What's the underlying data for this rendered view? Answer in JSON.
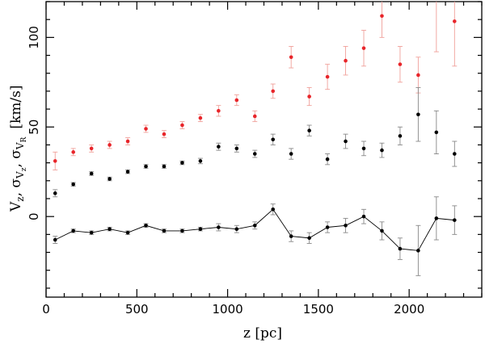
{
  "chart_data": {
    "type": "scatter",
    "xlabel": "z [pc]",
    "ylabel": {
      "line1": "V",
      "sub1": "z",
      "sep1": ",  ",
      "sigma": "σ",
      "sub2": "V",
      "subsub2": "z",
      "sep2": ",  ",
      "sigma2": "σ",
      "sub3": "V",
      "subsub3": "R",
      "unit": "[km/s]"
    },
    "xlim": [
      0,
      2400
    ],
    "ylim": [
      -45,
      120
    ],
    "xticks": [
      0,
      500,
      1000,
      1500,
      2000
    ],
    "yticks": [
      0,
      50,
      100
    ],
    "series": [
      {
        "color": "#e8252a",
        "errcolor": "#f0a09a",
        "connected": false,
        "x": [
          50,
          150,
          250,
          350,
          450,
          550,
          650,
          750,
          850,
          950,
          1050,
          1150,
          1250,
          1350,
          1450,
          1550,
          1650,
          1750,
          1850,
          1950,
          2050,
          2150,
          2250
        ],
        "y": [
          31,
          36,
          38,
          40,
          42,
          49,
          46,
          51,
          55,
          59,
          65,
          56,
          70,
          89,
          67,
          78,
          87,
          94,
          112,
          85,
          79,
          127,
          109
        ],
        "err": [
          5,
          2,
          2,
          2,
          2,
          2,
          2,
          2,
          2,
          3,
          3,
          3,
          4,
          6,
          5,
          7,
          8,
          10,
          12,
          10,
          10,
          35,
          25
        ]
      },
      {
        "color": "#000000",
        "errcolor": "#888888",
        "connected": false,
        "x": [
          50,
          150,
          250,
          350,
          450,
          550,
          650,
          750,
          850,
          950,
          1050,
          1150,
          1250,
          1350,
          1450,
          1550,
          1650,
          1750,
          1850,
          1950,
          2050,
          2150,
          2250
        ],
        "y": [
          13,
          18,
          24,
          21,
          25,
          28,
          28,
          30,
          31,
          39,
          38,
          35,
          43,
          35,
          48,
          32,
          42,
          38,
          37,
          45,
          57,
          47,
          35
        ],
        "err": [
          2,
          1,
          1,
          1,
          1,
          1,
          1,
          1,
          1.5,
          2,
          2,
          2,
          3,
          3,
          3,
          3,
          4,
          4,
          4,
          5,
          15,
          12,
          7
        ]
      },
      {
        "color": "#000000",
        "errcolor": "#888888",
        "connected": true,
        "x": [
          50,
          150,
          250,
          350,
          450,
          550,
          650,
          750,
          850,
          950,
          1050,
          1150,
          1250,
          1350,
          1450,
          1550,
          1650,
          1750,
          1850,
          1950,
          2050,
          2150,
          2250
        ],
        "y": [
          -13,
          -8,
          -9,
          -7,
          -9,
          -5,
          -8,
          -8,
          -7,
          -6,
          -7,
          -5,
          4,
          -11,
          -12,
          -6,
          -5,
          0,
          -8,
          -18,
          -19,
          -1,
          -2
        ],
        "err": [
          2,
          1,
          1,
          1,
          1,
          1,
          1,
          1,
          1,
          2,
          2,
          2,
          3,
          3,
          3,
          3,
          4,
          4,
          5,
          6,
          14,
          12,
          8
        ]
      }
    ]
  }
}
